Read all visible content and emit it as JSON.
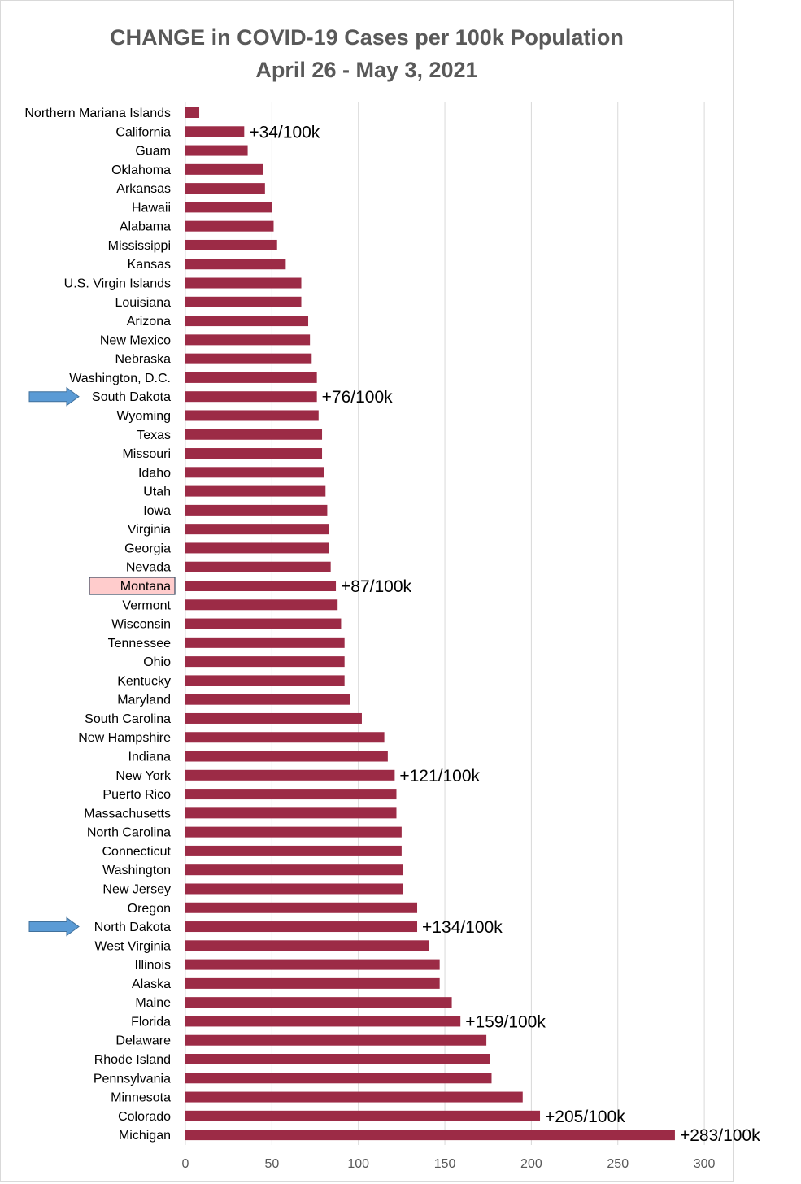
{
  "chart_data": {
    "type": "bar",
    "orientation": "horizontal",
    "title": [
      "CHANGE in COVID-19 Cases per 100k Population",
      "April 26 - May 3, 2021"
    ],
    "categories": [
      "Northern Mariana Islands",
      "California",
      "Guam",
      "Oklahoma",
      "Arkansas",
      "Hawaii",
      "Alabama",
      "Mississippi",
      "Kansas",
      "U.S. Virgin Islands",
      "Louisiana",
      "Arizona",
      "New Mexico",
      "Nebraska",
      "Washington, D.C.",
      "South Dakota",
      "Wyoming",
      "Texas",
      "Missouri",
      "Idaho",
      "Utah",
      "Iowa",
      "Virginia",
      "Georgia",
      "Nevada",
      "Montana",
      "Vermont",
      "Wisconsin",
      "Tennessee",
      "Ohio",
      "Kentucky",
      "Maryland",
      "South Carolina",
      "New Hampshire",
      "Indiana",
      "New York",
      "Puerto Rico",
      "Massachusetts",
      "North Carolina",
      "Connecticut",
      "Washington",
      "New Jersey",
      "Oregon",
      "North Dakota",
      "West Virginia",
      "Illinois",
      "Alaska",
      "Maine",
      "Florida",
      "Delaware",
      "Rhode Island",
      "Pennsylvania",
      "Minnesota",
      "Colorado",
      "Michigan"
    ],
    "values": [
      8,
      34,
      36,
      45,
      46,
      50,
      51,
      53,
      58,
      67,
      67,
      71,
      72,
      73,
      76,
      76,
      77,
      79,
      79,
      80,
      81,
      82,
      83,
      83,
      84,
      87,
      88,
      90,
      92,
      92,
      92,
      95,
      102,
      115,
      117,
      121,
      122,
      122,
      125,
      125,
      126,
      126,
      134,
      134,
      141,
      147,
      147,
      154,
      159,
      174,
      176,
      177,
      195,
      205,
      283
    ],
    "data_labels": [
      {
        "category": "California",
        "text": "+34/100k"
      },
      {
        "category": "South Dakota",
        "text": "+76/100k"
      },
      {
        "category": "Montana",
        "text": "+87/100k"
      },
      {
        "category": "New York",
        "text": "+121/100k"
      },
      {
        "category": "North Dakota",
        "text": "+134/100k"
      },
      {
        "category": "Florida",
        "text": "+159/100k"
      },
      {
        "category": "Colorado",
        "text": "+205/100k"
      },
      {
        "category": "Michigan",
        "text": "+283/100k"
      }
    ],
    "highlighted_category": "Montana",
    "arrow_categories": [
      "South Dakota",
      "North Dakota"
    ],
    "xlim": [
      0,
      300
    ],
    "xticks": [
      0,
      50,
      100,
      150,
      200,
      250,
      300
    ],
    "grid": "vertical",
    "legend": "none",
    "xlabel": "",
    "ylabel": "",
    "colors": {
      "bar": "#9c2b46",
      "grid": "#d9d9d9",
      "highlight_fill": "#ffcccc",
      "highlight_border": "#44546a",
      "arrow": "#5b9bd5",
      "arrow_border": "#41719c"
    }
  }
}
